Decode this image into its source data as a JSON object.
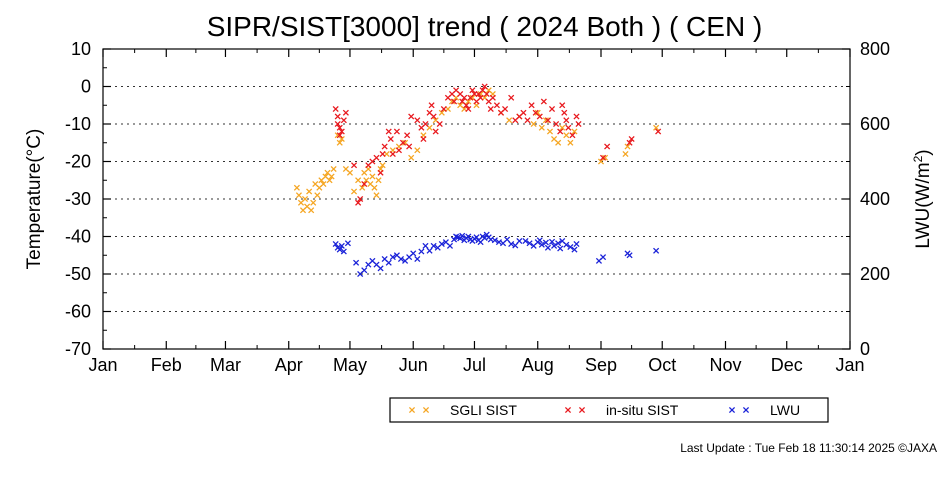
{
  "chart_data": {
    "type": "scatter",
    "title": "SIPR/SIST[3000] trend ( 2024 Both ) ( CEN )",
    "ylabel_left": "Temperature(°C)",
    "ylabel_right_base": "LWU(W/m",
    "ylabel_right_sup": "2",
    "ylabel_right_end": ")",
    "months": [
      "Jan",
      "Feb",
      "Mar",
      "Apr",
      "May",
      "Jun",
      "Jul",
      "Aug",
      "Sep",
      "Oct",
      "Nov",
      "Dec",
      "Jan"
    ],
    "x_unit": "day of year 2024",
    "xlim": [
      1,
      367
    ],
    "ylim_left": [
      -70,
      10
    ],
    "ylim_right": [
      0,
      800
    ],
    "yticks_left": [
      10,
      0,
      -10,
      -20,
      -30,
      -40,
      -50,
      -60,
      -70
    ],
    "yticks_right": [
      800,
      600,
      400,
      200,
      0
    ],
    "grid": "horizontal dotted",
    "legend_position": "bottom",
    "series": [
      {
        "name": "SGLI SIST",
        "color": "#f5a623",
        "axis": "left",
        "points": [
          [
            96,
            -27
          ],
          [
            97,
            -29
          ],
          [
            98,
            -31
          ],
          [
            99,
            -33
          ],
          [
            100,
            -30
          ],
          [
            101,
            -32
          ],
          [
            102,
            -28
          ],
          [
            103,
            -33
          ],
          [
            104,
            -31
          ],
          [
            105,
            -26
          ],
          [
            106,
            -29
          ],
          [
            107,
            -27
          ],
          [
            108,
            -25
          ],
          [
            109,
            -26
          ],
          [
            110,
            -24
          ],
          [
            111,
            -23
          ],
          [
            112,
            -25
          ],
          [
            113,
            -24
          ],
          [
            114,
            -22
          ],
          [
            116,
            -13
          ],
          [
            117,
            -15
          ],
          [
            118,
            -14
          ],
          [
            120,
            -22
          ],
          [
            122,
            -23
          ],
          [
            124,
            -28
          ],
          [
            126,
            -25
          ],
          [
            128,
            -27
          ],
          [
            129,
            -23
          ],
          [
            130,
            -25
          ],
          [
            131,
            -22
          ],
          [
            132,
            -26
          ],
          [
            133,
            -24
          ],
          [
            134,
            -27
          ],
          [
            135,
            -29
          ],
          [
            136,
            -25
          ],
          [
            137,
            -22
          ],
          [
            138,
            -21
          ],
          [
            140,
            -18
          ],
          [
            143,
            -17
          ],
          [
            146,
            -16
          ],
          [
            149,
            -15
          ],
          [
            152,
            -19
          ],
          [
            155,
            -17
          ],
          [
            158,
            -13
          ],
          [
            161,
            -11
          ],
          [
            164,
            -9
          ],
          [
            167,
            -7
          ],
          [
            170,
            -6
          ],
          [
            172,
            -4
          ],
          [
            174,
            -3
          ],
          [
            176,
            -5
          ],
          [
            178,
            -6
          ],
          [
            180,
            -4
          ],
          [
            182,
            -3
          ],
          [
            184,
            -5
          ],
          [
            186,
            -2
          ],
          [
            188,
            -3
          ],
          [
            190,
            -1
          ],
          [
            192,
            -2
          ],
          [
            196,
            -7
          ],
          [
            200,
            -9
          ],
          [
            205,
            -8
          ],
          [
            212,
            -10
          ],
          [
            214,
            -7
          ],
          [
            216,
            -11
          ],
          [
            218,
            -9
          ],
          [
            220,
            -12
          ],
          [
            222,
            -14
          ],
          [
            224,
            -15
          ],
          [
            226,
            -11
          ],
          [
            228,
            -13
          ],
          [
            230,
            -15
          ],
          [
            232,
            -12
          ],
          [
            245,
            -20
          ],
          [
            247,
            -19
          ],
          [
            257,
            -18
          ],
          [
            258,
            -16
          ],
          [
            272,
            -11
          ]
        ]
      },
      {
        "name": "in-situ SIST",
        "color": "#e8191e",
        "axis": "left",
        "points": [
          [
            115,
            -6
          ],
          [
            116,
            -8
          ],
          [
            117,
            -11
          ],
          [
            118,
            -12
          ],
          [
            119,
            -9
          ],
          [
            120,
            -7
          ],
          [
            116,
            -10
          ],
          [
            117,
            -13
          ],
          [
            124,
            -21
          ],
          [
            126,
            -31
          ],
          [
            127,
            -30
          ],
          [
            129,
            -26
          ],
          [
            131,
            -21
          ],
          [
            133,
            -20
          ],
          [
            135,
            -19
          ],
          [
            137,
            -23
          ],
          [
            138,
            -18
          ],
          [
            139,
            -16
          ],
          [
            141,
            -12
          ],
          [
            142,
            -14
          ],
          [
            143,
            -18
          ],
          [
            145,
            -12
          ],
          [
            146,
            -17
          ],
          [
            148,
            -15
          ],
          [
            150,
            -13
          ],
          [
            151,
            -16
          ],
          [
            152,
            -8
          ],
          [
            155,
            -9
          ],
          [
            157,
            -11
          ],
          [
            158,
            -14
          ],
          [
            159,
            -10
          ],
          [
            161,
            -7
          ],
          [
            162,
            -5
          ],
          [
            163,
            -8
          ],
          [
            164,
            -12
          ],
          [
            166,
            -10
          ],
          [
            168,
            -6
          ],
          [
            170,
            -3
          ],
          [
            172,
            -2
          ],
          [
            173,
            -4
          ],
          [
            174,
            -1
          ],
          [
            176,
            -2
          ],
          [
            177,
            -4
          ],
          [
            178,
            -3
          ],
          [
            179,
            -5
          ],
          [
            180,
            -6
          ],
          [
            181,
            -3
          ],
          [
            182,
            -1
          ],
          [
            183,
            -2
          ],
          [
            184,
            -4
          ],
          [
            185,
            -2
          ],
          [
            186,
            -3
          ],
          [
            187,
            -1
          ],
          [
            188,
            0
          ],
          [
            189,
            -2
          ],
          [
            190,
            -4
          ],
          [
            191,
            -6
          ],
          [
            192,
            -3
          ],
          [
            194,
            -5
          ],
          [
            196,
            -7
          ],
          [
            198,
            -6
          ],
          [
            201,
            -3
          ],
          [
            203,
            -9
          ],
          [
            205,
            -8
          ],
          [
            207,
            -7
          ],
          [
            209,
            -9
          ],
          [
            211,
            -5
          ],
          [
            213,
            -7
          ],
          [
            215,
            -8
          ],
          [
            217,
            -4
          ],
          [
            219,
            -9
          ],
          [
            221,
            -6
          ],
          [
            223,
            -10
          ],
          [
            225,
            -12
          ],
          [
            226,
            -5
          ],
          [
            227,
            -7
          ],
          [
            228,
            -9
          ],
          [
            229,
            -11
          ],
          [
            231,
            -13
          ],
          [
            233,
            -8
          ],
          [
            234,
            -10
          ],
          [
            246,
            -19
          ],
          [
            248,
            -16
          ],
          [
            259,
            -15
          ],
          [
            260,
            -14
          ],
          [
            273,
            -12
          ]
        ]
      },
      {
        "name": "LWU",
        "color": "#1a22d8",
        "axis": "right",
        "points": [
          [
            115,
            280
          ],
          [
            116,
            270
          ],
          [
            117,
            265
          ],
          [
            118,
            275
          ],
          [
            119,
            260
          ],
          [
            121,
            282
          ],
          [
            125,
            230
          ],
          [
            127,
            200
          ],
          [
            129,
            210
          ],
          [
            131,
            225
          ],
          [
            133,
            235
          ],
          [
            135,
            225
          ],
          [
            137,
            215
          ],
          [
            139,
            240
          ],
          [
            141,
            230
          ],
          [
            143,
            245
          ],
          [
            145,
            250
          ],
          [
            147,
            240
          ],
          [
            149,
            235
          ],
          [
            151,
            245
          ],
          [
            153,
            255
          ],
          [
            155,
            240
          ],
          [
            157,
            260
          ],
          [
            159,
            275
          ],
          [
            161,
            262
          ],
          [
            163,
            275
          ],
          [
            165,
            270
          ],
          [
            167,
            280
          ],
          [
            169,
            285
          ],
          [
            171,
            275
          ],
          [
            173,
            292
          ],
          [
            174,
            300
          ],
          [
            175,
            298
          ],
          [
            176,
            295
          ],
          [
            177,
            302
          ],
          [
            178,
            290
          ],
          [
            179,
            296
          ],
          [
            180,
            300
          ],
          [
            181,
            292
          ],
          [
            182,
            288
          ],
          [
            183,
            294
          ],
          [
            184,
            298
          ],
          [
            185,
            290
          ],
          [
            186,
            285
          ],
          [
            187,
            300
          ],
          [
            188,
            296
          ],
          [
            189,
            305
          ],
          [
            190,
            298
          ],
          [
            191,
            292
          ],
          [
            193,
            290
          ],
          [
            195,
            285
          ],
          [
            197,
            282
          ],
          [
            199,
            292
          ],
          [
            201,
            280
          ],
          [
            203,
            276
          ],
          [
            205,
            288
          ],
          [
            208,
            288
          ],
          [
            210,
            282
          ],
          [
            212,
            275
          ],
          [
            214,
            285
          ],
          [
            215,
            290
          ],
          [
            216,
            278
          ],
          [
            218,
            284
          ],
          [
            219,
            270
          ],
          [
            221,
            286
          ],
          [
            222,
            275
          ],
          [
            224,
            282
          ],
          [
            225,
            268
          ],
          [
            226,
            288
          ],
          [
            228,
            278
          ],
          [
            230,
            272
          ],
          [
            232,
            265
          ],
          [
            233,
            280
          ],
          [
            244,
            235
          ],
          [
            246,
            245
          ],
          [
            258,
            255
          ],
          [
            259,
            250
          ],
          [
            272,
            262
          ]
        ]
      }
    ]
  },
  "footer": {
    "last_update": "Last Update : Tue Feb 18 11:30:14 2025  ©JAXA"
  }
}
